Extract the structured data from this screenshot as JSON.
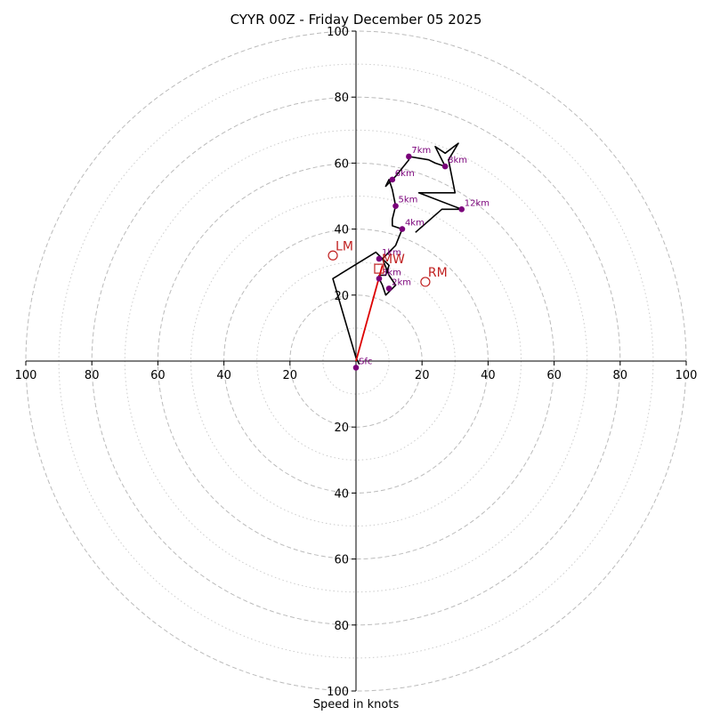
{
  "chart_data": {
    "type": "hodograph",
    "title": "CYYR 00Z - Friday December 05 2025",
    "xlabel": "Speed in knots",
    "range": 100,
    "major_rings": [
      20,
      40,
      60,
      80,
      100
    ],
    "minor_rings": [
      10,
      30,
      50,
      70,
      90
    ],
    "tick_values": [
      20,
      40,
      60,
      80,
      100
    ],
    "trace": [
      {
        "u": 1,
        "v": -1
      },
      {
        "u": 0,
        "v": 1
      },
      {
        "u": -7,
        "v": 25
      },
      {
        "u": 6,
        "v": 33
      },
      {
        "u": 8,
        "v": 31
      },
      {
        "u": 10,
        "v": 29
      },
      {
        "u": 9,
        "v": 26
      },
      {
        "u": 7,
        "v": 26
      },
      {
        "u": 7,
        "v": 25
      },
      {
        "u": 8,
        "v": 23
      },
      {
        "u": 9,
        "v": 20
      },
      {
        "u": 12,
        "v": 23
      },
      {
        "u": 10,
        "v": 26
      },
      {
        "u": 8,
        "v": 31
      },
      {
        "u": 12,
        "v": 35
      },
      {
        "u": 14,
        "v": 40
      },
      {
        "u": 11,
        "v": 41
      },
      {
        "u": 11,
        "v": 43
      },
      {
        "u": 12,
        "v": 47
      },
      {
        "u": 11,
        "v": 52
      },
      {
        "u": 10,
        "v": 55
      },
      {
        "u": 9,
        "v": 53
      },
      {
        "u": 12,
        "v": 56
      },
      {
        "u": 16,
        "v": 61
      },
      {
        "u": 16,
        "v": 62
      },
      {
        "u": 22,
        "v": 61
      },
      {
        "u": 24,
        "v": 60
      },
      {
        "u": 27,
        "v": 59
      },
      {
        "u": 24,
        "v": 65
      },
      {
        "u": 27,
        "v": 63
      },
      {
        "u": 31,
        "v": 66
      },
      {
        "u": 28,
        "v": 61
      },
      {
        "u": 30,
        "v": 51
      },
      {
        "u": 19,
        "v": 51
      },
      {
        "u": 32,
        "v": 46
      },
      {
        "u": 26,
        "v": 46
      },
      {
        "u": 18,
        "v": 39
      }
    ],
    "height_points": [
      {
        "label": "Sfc",
        "u": 0,
        "v": -2
      },
      {
        "label": "1km",
        "u": 7,
        "v": 31
      },
      {
        "label": "2km",
        "u": 10,
        "v": 22
      },
      {
        "label": "3km",
        "u": 7,
        "v": 25
      },
      {
        "label": "4km",
        "u": 14,
        "v": 40
      },
      {
        "label": "5km",
        "u": 12,
        "v": 47
      },
      {
        "label": "6km",
        "u": 11,
        "v": 55
      },
      {
        "label": "7km",
        "u": 16,
        "v": 62
      },
      {
        "label": "8km",
        "u": 27,
        "v": 59
      },
      {
        "label": "12km",
        "u": 32,
        "v": 46
      }
    ],
    "shear_vector": {
      "from": {
        "u": 0,
        "v": 0
      },
      "to": {
        "u": 8,
        "v": 29
      },
      "color": "#dd0000"
    },
    "storm_motion": [
      {
        "label": "LM",
        "u": -7,
        "v": 32
      },
      {
        "label": "RM",
        "u": 21,
        "v": 24
      },
      {
        "label": "MW",
        "u": 7,
        "v": 28
      }
    ],
    "colors": {
      "trace": "#000000",
      "points": "#7a007a",
      "point_labels": "#7a007a",
      "storm": "#c02020",
      "grid_major": "#bbbbbb",
      "grid_minor": "#cccccc",
      "axis": "#000000"
    }
  }
}
